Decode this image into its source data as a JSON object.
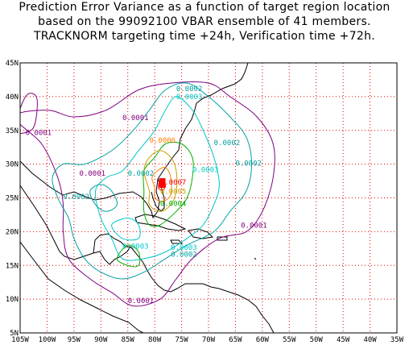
{
  "title": {
    "line1": "Prediction Error Variance as a function of target region location",
    "line2": "based on the 99092100 VBAR ensemble of 41 members.",
    "line3": "TRACKNORM targeting time +24h, Verification time +72h."
  },
  "axes": {
    "lon_labels": [
      "105W",
      "100W",
      "95W",
      "90W",
      "85W",
      "80W",
      "75W",
      "70W",
      "65W",
      "60W",
      "55W",
      "50W",
      "45W",
      "40W",
      "35W"
    ],
    "lat_labels": [
      "5N",
      "10N",
      "15N",
      "20N",
      "25N",
      "30N",
      "35N",
      "40N",
      "45N"
    ],
    "lon_range": [
      -105,
      -35
    ],
    "lat_range": [
      5,
      45
    ],
    "grid": "dotted",
    "grid_color": "#e00000"
  },
  "colors": {
    "0.0001": "#800080",
    "0.0002": "#00a0a0",
    "0.0003": "#00c8c8",
    "0.0004": "#00b000",
    "0.0005": "#c8a000",
    "0.0006": "#ff8000",
    "0.0007": "#ff0000",
    "coast": "#000000"
  },
  "contour_labels": [
    {
      "text": "0.0001",
      "lon": -86,
      "lat": 36.5,
      "level": "0.0001"
    },
    {
      "text": "0.0001",
      "lon": -104,
      "lat": 34.3,
      "level": "0.0001"
    },
    {
      "text": "0.0001",
      "lon": -94,
      "lat": 28.3,
      "level": "0.0001"
    },
    {
      "text": "0.0001",
      "lon": -64,
      "lat": 20.6,
      "level": "0.0001"
    },
    {
      "text": "0.0001",
      "lon": -85,
      "lat": 9.4,
      "level": "0.0001"
    },
    {
      "text": "0.0002",
      "lon": -76,
      "lat": 40.8,
      "level": "0.0002"
    },
    {
      "text": "0.0002",
      "lon": -69,
      "lat": 32.8,
      "level": "0.0002"
    },
    {
      "text": "0.0002",
      "lon": -65,
      "lat": 29.8,
      "level": "0.0002"
    },
    {
      "text": "0.0002",
      "lon": -85,
      "lat": 28.3,
      "level": "0.0002"
    },
    {
      "text": "0.0002",
      "lon": -97,
      "lat": 24.8,
      "level": "0.0002"
    },
    {
      "text": "0.0002",
      "lon": -77,
      "lat": 16.3,
      "level": "0.0002"
    },
    {
      "text": "0.0003",
      "lon": -76,
      "lat": 39.6,
      "level": "0.0003"
    },
    {
      "text": "0.0003",
      "lon": -73,
      "lat": 28.8,
      "level": "0.0003"
    },
    {
      "text": "0.0003",
      "lon": -86,
      "lat": 17.5,
      "level": "0.0003"
    },
    {
      "text": "0.0003",
      "lon": -77,
      "lat": 17.3,
      "level": "0.0003"
    },
    {
      "text": "0.0004",
      "lon": -79,
      "lat": 23.8,
      "level": "0.0004"
    },
    {
      "text": "0.0005",
      "lon": -79,
      "lat": 25.6,
      "level": "0.0005"
    },
    {
      "text": "0.0006",
      "lon": -81,
      "lat": 33.2,
      "level": "0.0006"
    },
    {
      "text": "0.0007",
      "lon": -79,
      "lat": 27.0,
      "level": "0.0007"
    }
  ],
  "maximum": {
    "lon": -78.6,
    "lat": 27.2,
    "value": "0.0007"
  }
}
